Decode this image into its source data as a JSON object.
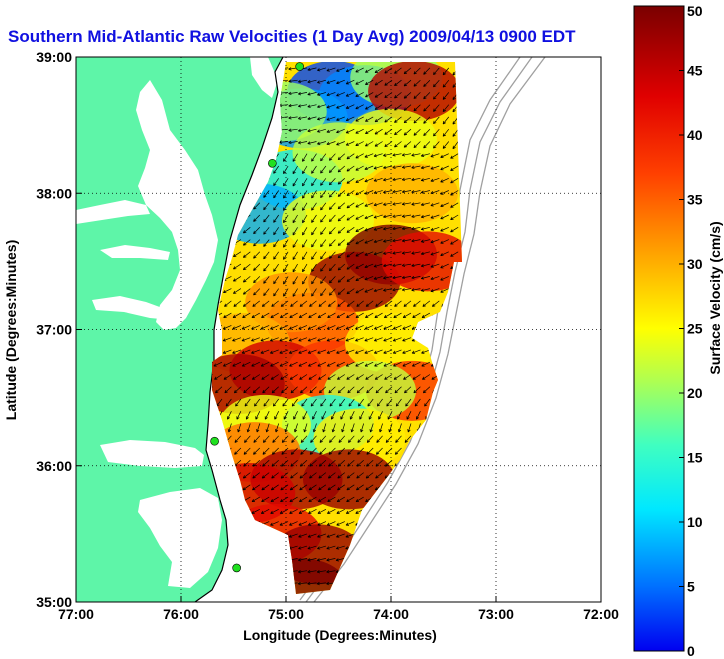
{
  "title": "Southern Mid-Atlantic Raw Velocities (1 Day Avg) 2009/04/13 0900 EDT",
  "colors": {
    "title": "#1010e0",
    "land": "#5ef5a8",
    "water": "#ffffff",
    "coastline": "#000000",
    "isobath": "#a0a0a0",
    "grid": "#000000",
    "arrows": "#000000",
    "station": "#20e020"
  },
  "xaxis": {
    "label": "Longitude (Degrees:Minutes)",
    "ticks": [
      {
        "value": -77,
        "label": "77:00"
      },
      {
        "value": -76,
        "label": "76:00"
      },
      {
        "value": -75,
        "label": "75:00"
      },
      {
        "value": -74,
        "label": "74:00"
      },
      {
        "value": -73,
        "label": "73:00"
      },
      {
        "value": -72,
        "label": "72:00"
      }
    ],
    "range": [
      -77,
      -72
    ]
  },
  "yaxis": {
    "label": "Latitude (Degrees:Minutes)",
    "ticks": [
      {
        "value": 35,
        "label": "35:00"
      },
      {
        "value": 36,
        "label": "36:00"
      },
      {
        "value": 37,
        "label": "37:00"
      },
      {
        "value": 38,
        "label": "38:00"
      },
      {
        "value": 39,
        "label": "39:00"
      }
    ],
    "range": [
      35,
      39
    ]
  },
  "colorbar": {
    "label": "Surface Velocity (cm/s)",
    "range": [
      0,
      50
    ],
    "ticks": [
      {
        "value": 0,
        "label": "0"
      },
      {
        "value": 5,
        "label": "5"
      },
      {
        "value": 10,
        "label": "10"
      },
      {
        "value": 15,
        "label": "15"
      },
      {
        "value": 20,
        "label": "20"
      },
      {
        "value": 25,
        "label": "25"
      },
      {
        "value": 30,
        "label": "30"
      },
      {
        "value": 35,
        "label": "35"
      },
      {
        "value": 40,
        "label": "40"
      },
      {
        "value": 45,
        "label": "45"
      },
      {
        "value": 50,
        "label": "50"
      }
    ]
  },
  "stations": [
    {
      "lon": -74.87,
      "lat": 38.93
    },
    {
      "lon": -75.13,
      "lat": 38.22
    },
    {
      "lon": -75.68,
      "lat": 36.18
    },
    {
      "lon": -75.47,
      "lat": 35.25
    }
  ],
  "speed_field": [
    {
      "lon": -74.55,
      "lat": 38.75,
      "speed": 3
    },
    {
      "lon": -74.25,
      "lat": 38.72,
      "speed": 6
    },
    {
      "lon": -73.95,
      "lat": 38.85,
      "speed": 20
    },
    {
      "lon": -73.78,
      "lat": 38.75,
      "speed": 46
    },
    {
      "lon": -74.85,
      "lat": 38.55,
      "speed": 7
    },
    {
      "lon": -74.9,
      "lat": 38.1,
      "speed": 12
    },
    {
      "lon": -75.25,
      "lat": 37.85,
      "speed": 8
    },
    {
      "lon": -75.05,
      "lat": 38.6,
      "speed": 20
    },
    {
      "lon": -74.5,
      "lat": 38.3,
      "speed": 22
    },
    {
      "lon": -74.0,
      "lat": 38.4,
      "speed": 24
    },
    {
      "lon": -73.8,
      "lat": 38.0,
      "speed": 30
    },
    {
      "lon": -74.6,
      "lat": 37.8,
      "speed": 24
    },
    {
      "lon": -75.3,
      "lat": 37.4,
      "speed": 27
    },
    {
      "lon": -74.0,
      "lat": 37.55,
      "speed": 50
    },
    {
      "lon": -74.35,
      "lat": 37.35,
      "speed": 48
    },
    {
      "lon": -73.65,
      "lat": 37.5,
      "speed": 42
    },
    {
      "lon": -74.75,
      "lat": 37.05,
      "speed": 36
    },
    {
      "lon": -74.95,
      "lat": 37.2,
      "speed": 32
    },
    {
      "lon": -75.4,
      "lat": 36.9,
      "speed": 30
    },
    {
      "lon": -75.1,
      "lat": 36.7,
      "speed": 44
    },
    {
      "lon": -75.45,
      "lat": 36.6,
      "speed": 47
    },
    {
      "lon": -74.55,
      "lat": 36.7,
      "speed": 38
    },
    {
      "lon": -74.0,
      "lat": 36.9,
      "speed": 26
    },
    {
      "lon": -73.8,
      "lat": 36.55,
      "speed": 38
    },
    {
      "lon": -74.2,
      "lat": 36.55,
      "speed": 22
    },
    {
      "lon": -74.6,
      "lat": 36.3,
      "speed": 14
    },
    {
      "lon": -74.3,
      "lat": 36.2,
      "speed": 26
    },
    {
      "lon": -75.2,
      "lat": 36.3,
      "speed": 24
    },
    {
      "lon": -75.3,
      "lat": 36.1,
      "speed": 34
    },
    {
      "lon": -74.9,
      "lat": 35.9,
      "speed": 47
    },
    {
      "lon": -74.4,
      "lat": 35.9,
      "speed": 48
    },
    {
      "lon": -75.35,
      "lat": 35.8,
      "speed": 44
    },
    {
      "lon": -75.1,
      "lat": 35.5,
      "speed": 42
    },
    {
      "lon": -74.7,
      "lat": 35.35,
      "speed": 48
    },
    {
      "lon": -74.85,
      "lat": 35.1,
      "speed": 50
    }
  ]
}
